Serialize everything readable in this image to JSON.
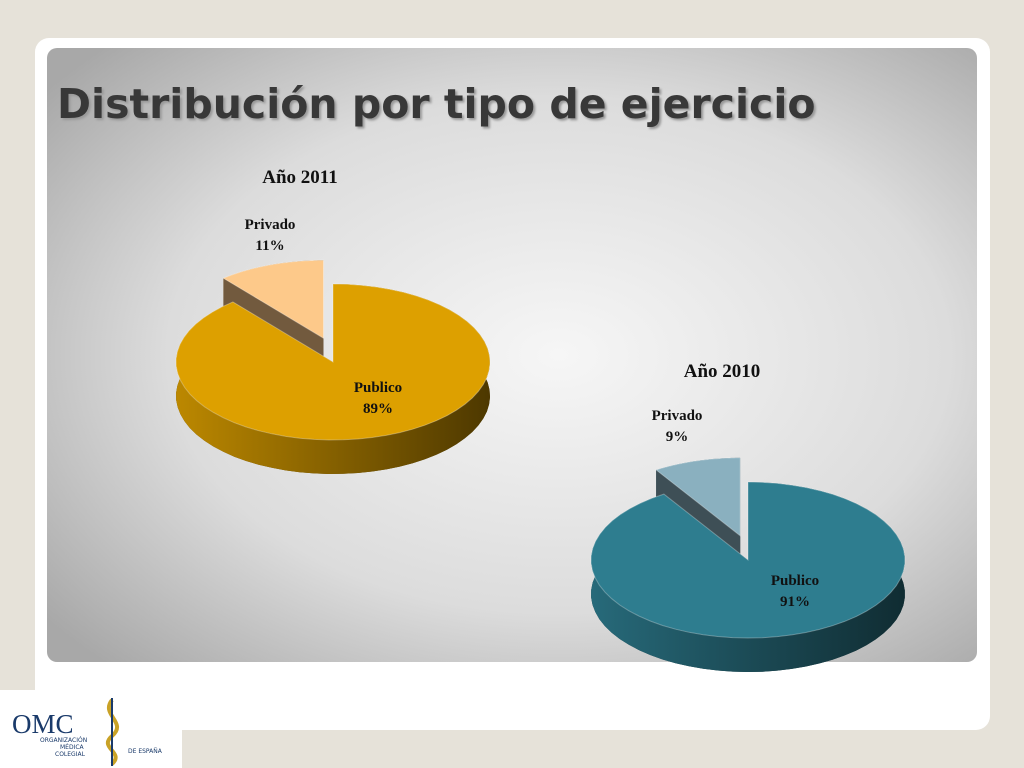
{
  "title": "Distribución por tipo de ejercicio",
  "chart_data": [
    {
      "type": "pie",
      "title": "Año 2011",
      "categories": [
        "Publico",
        "Privado"
      ],
      "values": [
        89,
        11
      ],
      "value_labels": [
        "89%",
        "11%"
      ],
      "colors": [
        "#dda000",
        "#fdc98a"
      ]
    },
    {
      "type": "pie",
      "title": "Año 2010",
      "categories": [
        "Publico",
        "Privado"
      ],
      "values": [
        91,
        9
      ],
      "value_labels": [
        "91%",
        "9%"
      ],
      "colors": [
        "#2e7d8f",
        "#8ab0bf"
      ]
    }
  ],
  "logo": {
    "name": "OMC",
    "line1": "ORGANIZACIÓN",
    "line2": "MÉDICA",
    "line3": "COLEGIAL",
    "line4": "DE ESPAÑA"
  }
}
